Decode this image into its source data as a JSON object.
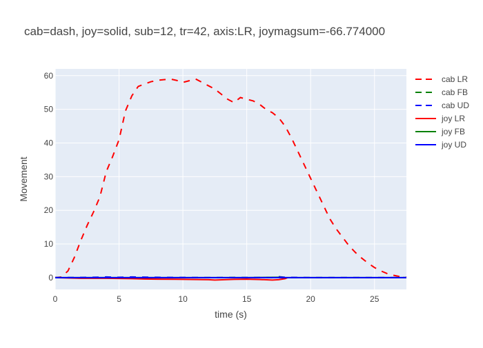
{
  "chart_data": {
    "type": "line",
    "title": "cab=dash, joy=solid, sub=12, tr=42, axis:LR, joymagsum=-66.774000",
    "xlabel": "time (s)",
    "ylabel": "Movement",
    "xlim": [
      0,
      27.5
    ],
    "ylim": [
      -3.5,
      62
    ],
    "xticks": [
      0,
      5,
      10,
      15,
      20,
      25
    ],
    "yticks": [
      0,
      10,
      20,
      30,
      40,
      50,
      60
    ],
    "grid": true,
    "legend_position": "right",
    "series": [
      {
        "name": "cab LR",
        "color": "#ff0000",
        "dash": "dash",
        "x": [
          0,
          0.5,
          1.0,
          1.5,
          2.0,
          2.5,
          3.0,
          3.5,
          4.0,
          4.5,
          5.0,
          5.5,
          6.0,
          6.5,
          7.0,
          7.5,
          8.0,
          8.5,
          9.0,
          9.5,
          10.0,
          10.5,
          11.0,
          11.5,
          12.0,
          12.5,
          13.0,
          13.5,
          14.0,
          14.5,
          15.0,
          15.5,
          16.0,
          16.5,
          17.0,
          17.5,
          18.0,
          18.5,
          19.0,
          19.5,
          20.0,
          20.5,
          21.0,
          21.5,
          22.0,
          22.5,
          23.0,
          23.5,
          24.0,
          24.5,
          25.0,
          25.5,
          26.0,
          26.5,
          27.0,
          27.5
        ],
        "y": [
          0,
          0.2,
          2.0,
          6.0,
          11.0,
          15.5,
          19.5,
          24.0,
          31.5,
          36.0,
          41.0,
          49.5,
          54.0,
          56.8,
          57.5,
          58.2,
          58.6,
          58.8,
          59.0,
          58.6,
          58.0,
          58.5,
          59.0,
          58.0,
          57.0,
          56.0,
          54.5,
          53.0,
          52.0,
          53.5,
          53.0,
          52.5,
          51.5,
          50.0,
          49.0,
          47.5,
          45.0,
          41.5,
          37.5,
          33.5,
          29.5,
          25.5,
          21.5,
          17.5,
          14.5,
          12.0,
          9.5,
          7.5,
          5.8,
          4.3,
          3.0,
          2.0,
          1.2,
          0.7,
          0.3,
          0.1
        ]
      },
      {
        "name": "cab FB",
        "color": "#008000",
        "dash": "dash",
        "x": [
          0,
          2.0,
          4.0,
          6.0,
          8.0,
          10.0,
          12.0,
          14.0,
          16.0,
          18.0,
          20.0,
          22.0,
          24.0,
          26.0,
          27.5
        ],
        "y": [
          0,
          0,
          0.05,
          0.05,
          0,
          0,
          0,
          0.05,
          0,
          0,
          0,
          0,
          0,
          0,
          0
        ]
      },
      {
        "name": "cab UD",
        "color": "#0000ff",
        "dash": "dash",
        "x": [
          0,
          2.0,
          3.0,
          4.0,
          5.0,
          6.0,
          8.0,
          10.0,
          12.0,
          14.0,
          16.0,
          17.0,
          17.5,
          18.0,
          20.0,
          22.0,
          24.0,
          26.0,
          27.5
        ],
        "y": [
          0,
          0.05,
          0.1,
          0.2,
          0.1,
          0.2,
          0.1,
          0.05,
          0,
          0,
          0.05,
          0.1,
          0.3,
          0.1,
          0,
          0,
          0,
          0,
          0
        ]
      },
      {
        "name": "joy LR",
        "color": "#ff0000",
        "dash": "solid",
        "x": [
          0,
          1.0,
          2.0,
          4.0,
          6.0,
          7.0,
          8.0,
          10.0,
          11.0,
          12.0,
          12.5,
          14.0,
          15.0,
          16.0,
          17.0,
          17.5,
          18.0,
          18.2
        ],
        "y": [
          0,
          -0.1,
          -0.2,
          -0.2,
          -0.3,
          -0.4,
          -0.45,
          -0.5,
          -0.55,
          -0.6,
          -0.7,
          -0.5,
          -0.45,
          -0.55,
          -0.7,
          -0.6,
          -0.3,
          0
        ]
      },
      {
        "name": "joy FB",
        "color": "#008000",
        "dash": "solid",
        "x": [
          0,
          5.0,
          10.0,
          15.0,
          17.5,
          18.0,
          20.0,
          27.5
        ],
        "y": [
          0,
          0,
          0,
          0,
          0.1,
          0,
          0,
          0
        ]
      },
      {
        "name": "joy UD",
        "color": "#0000ff",
        "dash": "solid",
        "x": [
          0,
          27.5
        ],
        "y": [
          0,
          0
        ]
      }
    ]
  }
}
